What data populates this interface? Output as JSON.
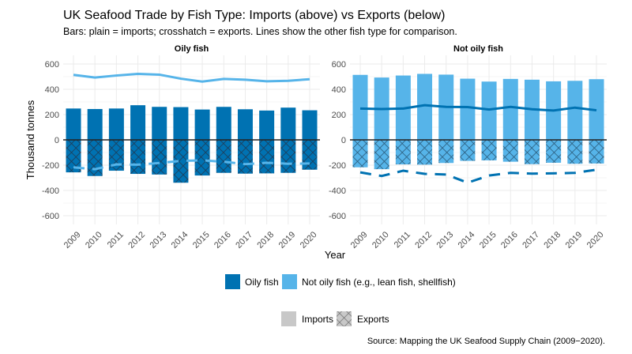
{
  "chart_data": {
    "type": "bar",
    "title": "UK Seafood Trade by Fish Type: Imports (above) vs Exports (below)",
    "subtitle": "Bars: plain = imports; crosshatch = exports. Lines show the other fish type for comparison.",
    "xlabel": "Year",
    "ylabel": "Thousand tonnes",
    "ylim": [
      -650,
      650
    ],
    "yticks": [
      600,
      400,
      200,
      0,
      -200,
      -400,
      -600
    ],
    "grid": true,
    "categories": [
      "2009",
      "2010",
      "2011",
      "2012",
      "2013",
      "2014",
      "2015",
      "2016",
      "2017",
      "2018",
      "2019",
      "2020"
    ],
    "panels": [
      {
        "title": "Oily fish",
        "key": "oily",
        "line_key": "not_oily"
      },
      {
        "title": "Not oily fish",
        "key": "not_oily",
        "line_key": "oily"
      }
    ],
    "series": {
      "oily": {
        "name": "Oily fish",
        "color": "#0072B2",
        "imports": [
          248,
          244,
          248,
          274,
          261,
          259,
          240,
          261,
          242,
          232,
          255,
          234
        ],
        "exports": [
          -257,
          -286,
          -244,
          -269,
          -274,
          -339,
          -282,
          -261,
          -267,
          -265,
          -261,
          -236
        ]
      },
      "not_oily": {
        "name": "Not oily fish (e.g., lean fish, shellfish)",
        "color": "#56B4E9",
        "imports": [
          514,
          493,
          509,
          522,
          516,
          484,
          461,
          482,
          476,
          463,
          467,
          480
        ],
        "exports": [
          -217,
          -232,
          -194,
          -196,
          -183,
          -166,
          -162,
          -173,
          -192,
          -181,
          -189,
          -187
        ]
      }
    },
    "legend": {
      "position": "bottom",
      "fill_items": [
        "Oily fish",
        "Not oily fish (e.g., lean fish, shellfish)"
      ],
      "pattern_items": [
        "Imports",
        "Exports"
      ]
    },
    "caption": "Source: Mapping the UK Seafood Supply Chain (2009−2020)."
  }
}
